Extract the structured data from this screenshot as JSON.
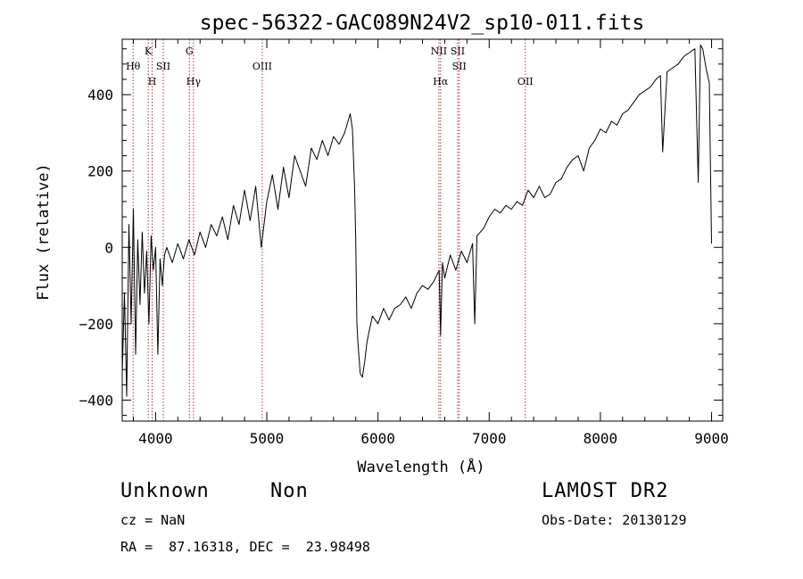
{
  "chart_data": {
    "type": "line",
    "title": "spec-56322-GAC089N24V2_sp10-011.fits",
    "xlabel": "Wavelength (Å)",
    "ylabel": "Flux (relative)",
    "xlim": [
      3700,
      9100
    ],
    "ylim": [
      -455,
      545
    ],
    "x_ticks": [
      4000,
      5000,
      6000,
      7000,
      8000,
      9000
    ],
    "y_ticks": [
      -400,
      -200,
      0,
      200,
      400
    ],
    "x_tick_labels": [
      "4000",
      "5000",
      "6000",
      "7000",
      "8000",
      "9000"
    ],
    "y_tick_labels": [
      "−400",
      "−200",
      "0",
      "200",
      "400"
    ],
    "grid": false,
    "line_color": "#000000",
    "marker_color": "#b03030",
    "spectrum": {
      "x": [
        3700,
        3720,
        3740,
        3760,
        3780,
        3800,
        3820,
        3840,
        3860,
        3880,
        3900,
        3920,
        3940,
        3960,
        3980,
        4000,
        4020,
        4040,
        4060,
        4080,
        4100,
        4150,
        4200,
        4250,
        4300,
        4350,
        4400,
        4450,
        4500,
        4550,
        4600,
        4650,
        4700,
        4750,
        4800,
        4850,
        4900,
        4950,
        5000,
        5050,
        5100,
        5150,
        5200,
        5250,
        5300,
        5350,
        5400,
        5450,
        5500,
        5550,
        5600,
        5650,
        5700,
        5750,
        5770,
        5790,
        5800,
        5810,
        5820,
        5840,
        5860,
        5880,
        5900,
        5920,
        5950,
        6000,
        6050,
        6100,
        6150,
        6200,
        6250,
        6300,
        6350,
        6400,
        6450,
        6500,
        6550,
        6563,
        6580,
        6600,
        6650,
        6700,
        6750,
        6800,
        6850,
        6870,
        6890,
        6950,
        7000,
        7050,
        7100,
        7150,
        7200,
        7250,
        7300,
        7350,
        7400,
        7450,
        7500,
        7550,
        7600,
        7650,
        7700,
        7750,
        7800,
        7850,
        7900,
        7950,
        8000,
        8050,
        8100,
        8150,
        8200,
        8250,
        8300,
        8350,
        8400,
        8450,
        8500,
        8540,
        8560,
        8600,
        8650,
        8700,
        8750,
        8800,
        8850,
        8880,
        8900,
        8920,
        8950,
        8980,
        9000
      ],
      "y": [
        -330,
        -120,
        -390,
        60,
        -200,
        100,
        -280,
        20,
        -150,
        40,
        -120,
        -10,
        -200,
        30,
        -60,
        0,
        -280,
        -30,
        -100,
        -20,
        0,
        -40,
        10,
        -30,
        20,
        -20,
        40,
        0,
        60,
        30,
        80,
        20,
        110,
        60,
        150,
        70,
        160,
        0,
        120,
        190,
        100,
        210,
        130,
        240,
        200,
        160,
        260,
        230,
        280,
        240,
        290,
        270,
        300,
        350,
        310,
        150,
        20,
        -200,
        -250,
        -330,
        -340,
        -300,
        -250,
        -220,
        -180,
        -200,
        -160,
        -190,
        -160,
        -150,
        -130,
        -160,
        -120,
        -100,
        -110,
        -90,
        -60,
        -230,
        -40,
        -80,
        -20,
        -60,
        -10,
        -40,
        10,
        -200,
        30,
        50,
        80,
        100,
        90,
        110,
        100,
        120,
        110,
        150,
        130,
        160,
        130,
        140,
        170,
        180,
        210,
        230,
        240,
        200,
        260,
        280,
        310,
        300,
        330,
        320,
        350,
        360,
        380,
        400,
        410,
        420,
        440,
        450,
        250,
        460,
        470,
        480,
        500,
        510,
        520,
        170,
        530,
        520,
        470,
        430,
        10
      ]
    },
    "lines": [
      {
        "label": "Hθ",
        "x": 3798,
        "row": 2
      },
      {
        "label": "K",
        "x": 3934,
        "row": 1
      },
      {
        "label": "H",
        "x": 3969,
        "row": 3
      },
      {
        "label": "SII",
        "x": 4069,
        "row": 2
      },
      {
        "label": "G",
        "x": 4304,
        "row": 1
      },
      {
        "label": "Hγ",
        "x": 4341,
        "row": 3
      },
      {
        "label": "OIII",
        "x": 4959,
        "row": 2
      },
      {
        "label": "NII",
        "x": 6548,
        "row": 1
      },
      {
        "label": "Hα",
        "x": 6563,
        "row": 3
      },
      {
        "label": "SII",
        "x": 6717,
        "row": 1
      },
      {
        "label": "SII",
        "x": 6731,
        "row": 2
      },
      {
        "label": "OII",
        "x": 7325,
        "row": 3
      }
    ]
  },
  "footer": {
    "object_class": "Unknown",
    "object_subclass": "Non",
    "survey": "LAMOST DR2",
    "cz": "cz = NaN",
    "obs_date": "Obs-Date: 20130129",
    "coords": "RA =  87.16318, DEC =  23.98498"
  }
}
